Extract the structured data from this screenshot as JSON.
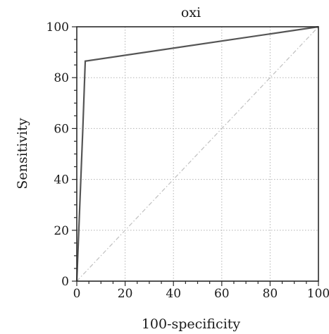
{
  "chart_data": {
    "type": "line",
    "title": "oxi",
    "xlabel": "100-specificity",
    "ylabel": "Sensitivity",
    "xlim": [
      0,
      100
    ],
    "ylim": [
      0,
      100
    ],
    "x_ticks": [
      0,
      20,
      40,
      60,
      80,
      100
    ],
    "y_ticks": [
      0,
      20,
      40,
      60,
      80,
      100
    ],
    "grid": true,
    "series": [
      {
        "values": [
          [
            0,
            0
          ],
          [
            2.5,
            60
          ],
          [
            3.5,
            86.5
          ],
          [
            100,
            100
          ]
        ]
      }
    ],
    "reference_line": [
      [
        0,
        0
      ],
      [
        100,
        100
      ]
    ],
    "colors": {
      "roc": "#555555",
      "reference": "#bfbfbf",
      "grid": "#b3b3b3",
      "frame": "#2a2a2a"
    }
  }
}
